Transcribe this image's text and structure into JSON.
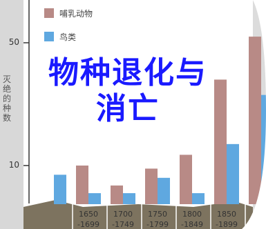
{
  "chart_data": {
    "type": "bar",
    "title": "物种退化与消亡",
    "y_label": "灭绝的种数",
    "categories": [
      null,
      "1650\n-1699",
      "1700\n-1749",
      "1750\n-1799",
      "1800\n-1849",
      "1850\n-1899",
      null
    ],
    "series": [
      {
        "name": "哺乳动物",
        "color": "#b88a86",
        "values": [
          null,
          10,
          3.5,
          9,
          13.5,
          38,
          52
        ]
      },
      {
        "name": "鸟类",
        "color": "#5fa8e0",
        "values": [
          7,
          1,
          1,
          6,
          1,
          17,
          33
        ]
      }
    ],
    "ylim": [
      0,
      60
    ],
    "yticks": [
      10,
      50
    ]
  }
}
